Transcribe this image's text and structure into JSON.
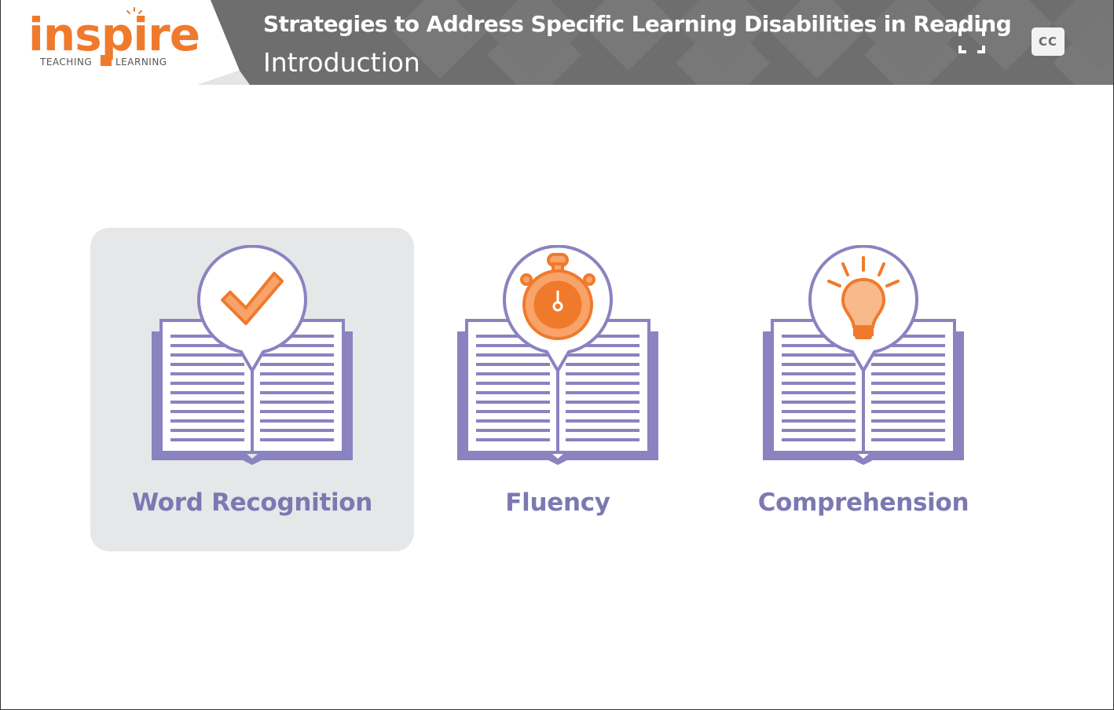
{
  "logo": {
    "word": "inspire",
    "sub_left": "TEACHING",
    "sub_right": "LEARNING"
  },
  "header": {
    "course_title": "Strategies to Address Specific Learning Disabilities in Reading",
    "section_title": "Introduction",
    "fullscreen_icon": "fullscreen-icon",
    "cc_label": "CC"
  },
  "colors": {
    "header_bg": "#6b6b6b",
    "accent_orange": "#f07a2c",
    "book_purple": "#8a83c0",
    "label_purple": "#7d78b2",
    "selected_card_bg": "#e6e7e9"
  },
  "cards": [
    {
      "label": "Word Recognition",
      "icon": "checkmark-icon",
      "selected": true
    },
    {
      "label": "Fluency",
      "icon": "stopwatch-icon",
      "selected": false
    },
    {
      "label": "Comprehension",
      "icon": "lightbulb-icon",
      "selected": false
    }
  ]
}
